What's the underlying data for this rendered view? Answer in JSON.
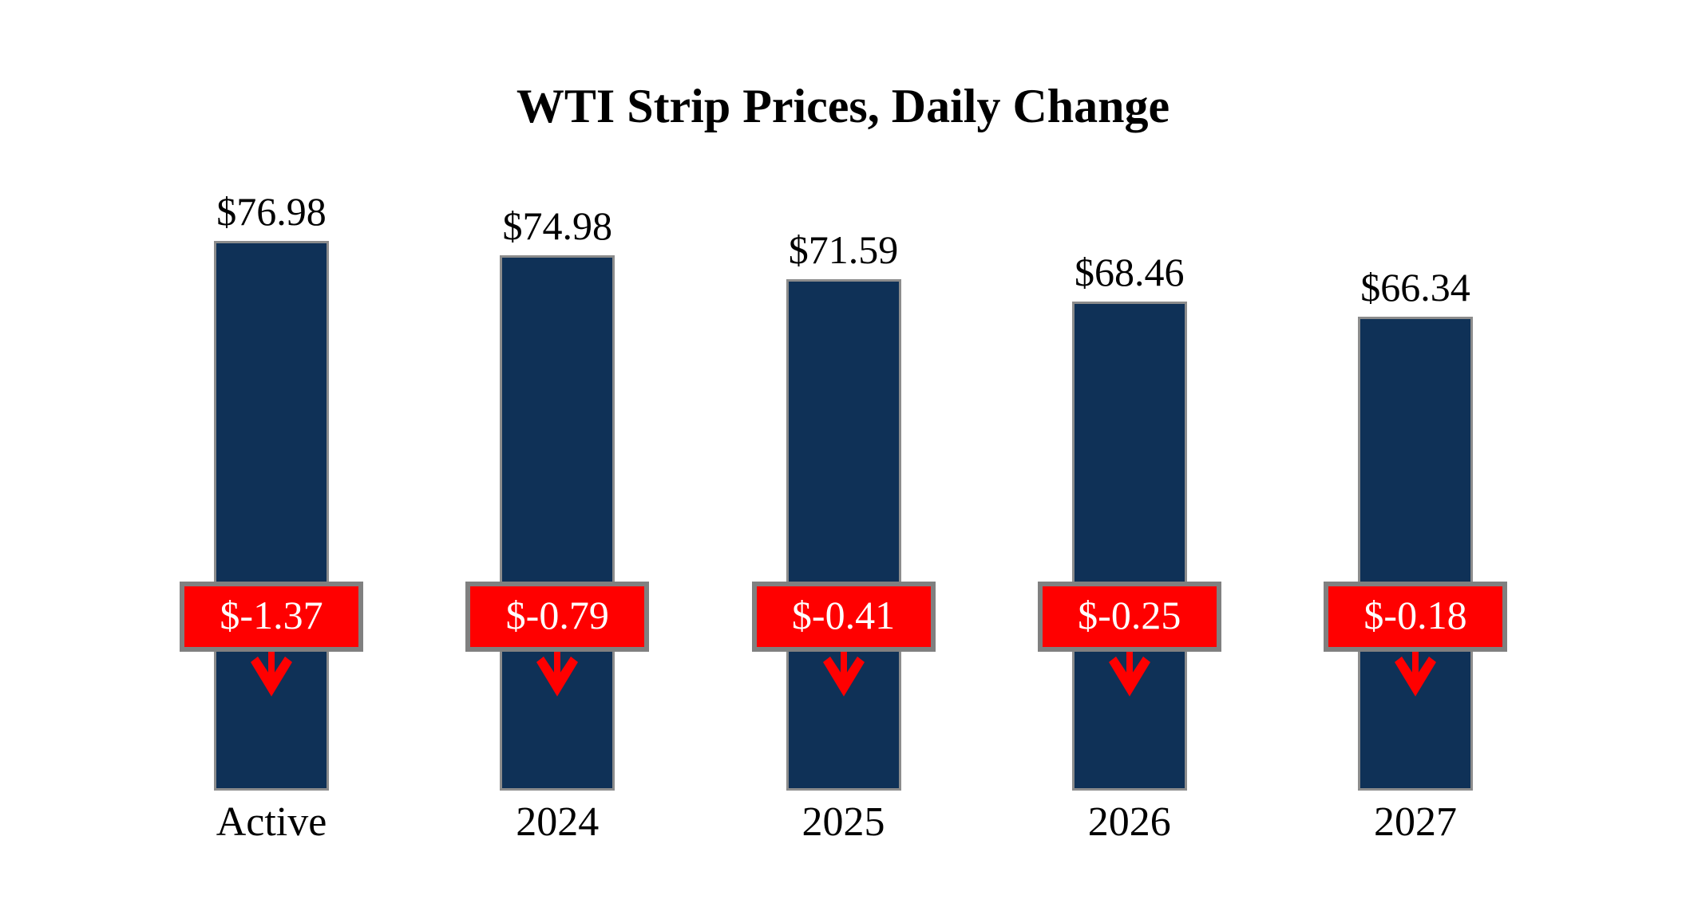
{
  "title": "WTI Strip Prices, Daily Change",
  "chart_data": {
    "type": "bar",
    "title": "WTI Strip Prices, Daily Change",
    "categories": [
      "Active",
      "2024",
      "2025",
      "2026",
      "2027"
    ],
    "values": [
      76.98,
      74.98,
      71.59,
      68.46,
      66.34
    ],
    "changes": [
      -1.37,
      -0.79,
      -0.41,
      -0.25,
      -0.18
    ],
    "price_labels": [
      "$76.98",
      "$74.98",
      "$71.59",
      "$68.46",
      "$66.34"
    ],
    "change_labels": [
      "$-1.37",
      "$-0.79",
      "$-0.41",
      "$-0.25",
      "$-0.18"
    ],
    "xlabel": "",
    "ylabel": "",
    "ylim": [
      0,
      76.98
    ],
    "grid": false,
    "legend": false,
    "colors": {
      "bar": "#0F3157",
      "bar_border": "#8C8C8C",
      "change_badge": "#FF0000",
      "badge_border": "#808080",
      "badge_text": "#FFFFFF",
      "text": "#000000",
      "background": "#FFFFFF",
      "arrow": "#FF0000"
    }
  }
}
